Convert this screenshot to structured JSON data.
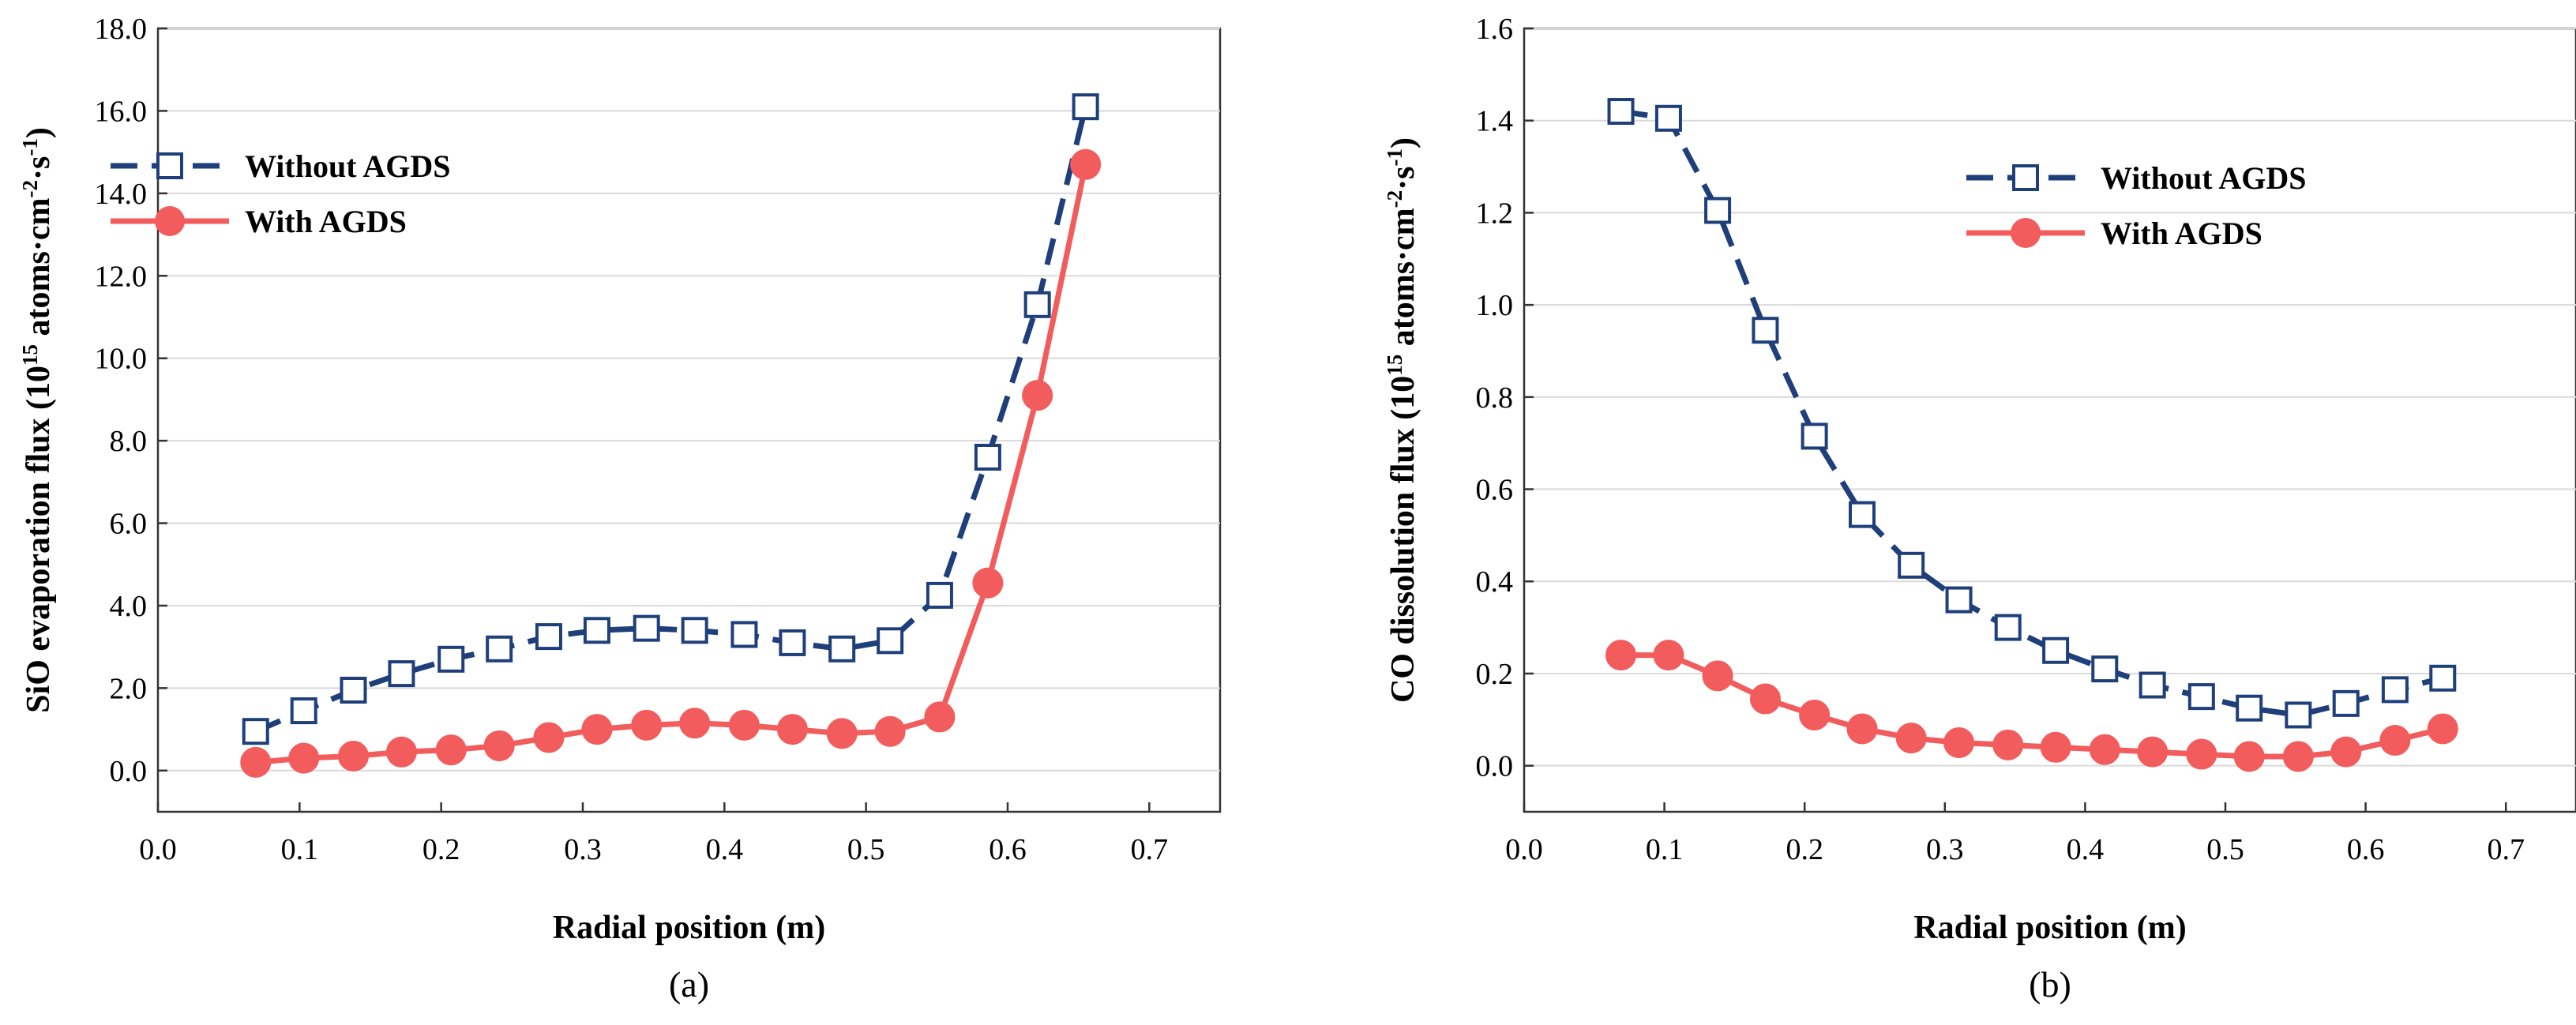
{
  "chart_data": [
    {
      "type": "line",
      "caption": "(a)",
      "xlabel": "Radial position (m)",
      "ylabel_parts": [
        "SiO evaporation flux (10",
        "15",
        " atoms·cm",
        "-2",
        "·s",
        "-1",
        ")"
      ],
      "xlim": [
        0.0,
        0.75
      ],
      "ylim": [
        -1.0,
        18.0
      ],
      "xticks": [
        "0.0",
        "0.1",
        "0.2",
        "0.3",
        "0.4",
        "0.5",
        "0.6",
        "0.7"
      ],
      "xtick_values": [
        0.0,
        0.1,
        0.2,
        0.3,
        0.4,
        0.5,
        0.6,
        0.7
      ],
      "yticks": [
        "0.0",
        "2.0",
        "4.0",
        "6.0",
        "8.0",
        "10.0",
        "12.0",
        "14.0",
        "16.0",
        "18.0"
      ],
      "ytick_values": [
        0,
        2,
        4,
        6,
        8,
        10,
        12,
        14,
        16,
        18
      ],
      "legend_position": "top-left",
      "series": [
        {
          "name": "Without AGDS",
          "color": "#1f3f7a",
          "marker": "open-square",
          "line": "dashed",
          "x": [
            0.069,
            0.103,
            0.138,
            0.172,
            0.207,
            0.241,
            0.276,
            0.31,
            0.345,
            0.379,
            0.414,
            0.448,
            0.483,
            0.517,
            0.552,
            0.586,
            0.621,
            0.655
          ],
          "values": [
            0.95,
            1.45,
            1.95,
            2.35,
            2.7,
            2.95,
            3.25,
            3.4,
            3.45,
            3.4,
            3.3,
            3.1,
            2.95,
            3.15,
            4.25,
            7.6,
            11.3,
            16.1
          ]
        },
        {
          "name": "With AGDS",
          "color": "#f25c5c",
          "marker": "filled-circle",
          "line": "solid",
          "x": [
            0.069,
            0.103,
            0.138,
            0.172,
            0.207,
            0.241,
            0.276,
            0.31,
            0.345,
            0.379,
            0.414,
            0.448,
            0.483,
            0.517,
            0.552,
            0.586,
            0.621,
            0.655
          ],
          "values": [
            0.2,
            0.3,
            0.35,
            0.45,
            0.5,
            0.6,
            0.8,
            1.0,
            1.1,
            1.15,
            1.1,
            1.0,
            0.9,
            0.95,
            1.3,
            4.55,
            9.1,
            14.7
          ]
        }
      ]
    },
    {
      "type": "line",
      "caption": "(b)",
      "xlabel": "Radial position (m)",
      "ylabel_parts": [
        "CO dissolution flux (10",
        "15",
        " atoms·cm",
        "-2",
        "·s",
        "-1",
        ")"
      ],
      "xlim": [
        0.0,
        0.75
      ],
      "ylim": [
        -0.1,
        1.6
      ],
      "xticks": [
        "0.0",
        "0.1",
        "0.2",
        "0.3",
        "0.4",
        "0.5",
        "0.6",
        "0.7"
      ],
      "xtick_values": [
        0.0,
        0.1,
        0.2,
        0.3,
        0.4,
        0.5,
        0.6,
        0.7
      ],
      "yticks": [
        "0.0",
        "0.2",
        "0.4",
        "0.6",
        "0.8",
        "1.0",
        "1.2",
        "1.4",
        "1.6"
      ],
      "ytick_values": [
        0,
        0.2,
        0.4,
        0.6,
        0.8,
        1.0,
        1.2,
        1.4,
        1.6
      ],
      "legend_position": "top-right",
      "series": [
        {
          "name": "Without AGDS",
          "color": "#1f3f7a",
          "marker": "open-square",
          "line": "dashed",
          "x": [
            0.069,
            0.103,
            0.138,
            0.172,
            0.207,
            0.241,
            0.276,
            0.31,
            0.345,
            0.379,
            0.414,
            0.448,
            0.483,
            0.517,
            0.552,
            0.586,
            0.621,
            0.655
          ],
          "values": [
            1.42,
            1.405,
            1.205,
            0.945,
            0.715,
            0.545,
            0.435,
            0.36,
            0.3,
            0.25,
            0.21,
            0.175,
            0.15,
            0.125,
            0.11,
            0.135,
            0.165,
            0.19
          ]
        },
        {
          "name": "With AGDS",
          "color": "#f25c5c",
          "marker": "filled-circle",
          "line": "solid",
          "x": [
            0.069,
            0.103,
            0.138,
            0.172,
            0.207,
            0.241,
            0.276,
            0.31,
            0.345,
            0.379,
            0.414,
            0.448,
            0.483,
            0.517,
            0.552,
            0.586,
            0.621,
            0.655
          ],
          "values": [
            0.24,
            0.24,
            0.195,
            0.145,
            0.11,
            0.08,
            0.06,
            0.05,
            0.045,
            0.04,
            0.035,
            0.03,
            0.025,
            0.02,
            0.02,
            0.03,
            0.055,
            0.08
          ]
        }
      ]
    }
  ]
}
